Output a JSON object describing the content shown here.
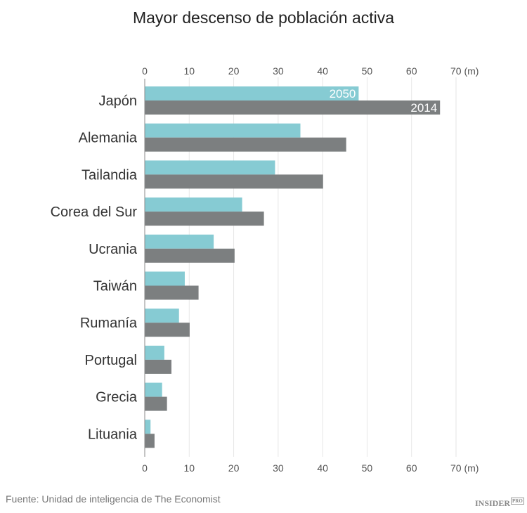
{
  "chart_data": {
    "type": "bar",
    "orientation": "horizontal",
    "title": "Mayor descenso de población activa",
    "categories": [
      "Japón",
      "Alemania",
      "Tailandia",
      "Corea del Sur",
      "Ucrania",
      "Taiwán",
      "Rumanía",
      "Portugal",
      "Grecia",
      "Lituania"
    ],
    "series": [
      {
        "name": "2050",
        "color": "#86cbd3",
        "values": [
          48.1,
          35.0,
          29.3,
          21.9,
          15.5,
          9.0,
          7.7,
          4.4,
          3.9,
          1.3
        ]
      },
      {
        "name": "2014",
        "color": "#7c7f80",
        "values": [
          66.4,
          45.3,
          40.1,
          26.8,
          20.2,
          12.1,
          10.1,
          6.0,
          5.0,
          2.2
        ]
      }
    ],
    "xlim": [
      0,
      70
    ],
    "xticks": [
      "0",
      "10",
      "20",
      "30",
      "40",
      "50",
      "60",
      "70 (m)"
    ],
    "grid": true,
    "axis_position": "top-and-bottom"
  },
  "source": "Fuente: Unidad de inteligencia de The Economist",
  "logo": {
    "text": "INSIDER",
    "badge": "PRO"
  }
}
